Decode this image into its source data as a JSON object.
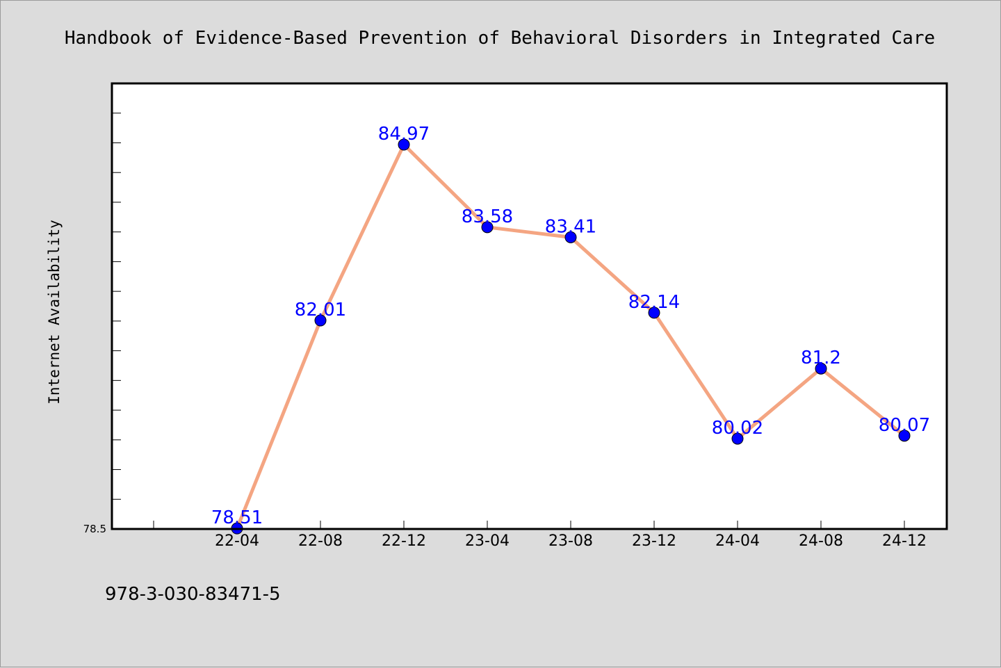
{
  "chart_data": {
    "type": "line",
    "title": "Handbook of Evidence-Based Prevention of Behavioral Disorders in Integrated Care",
    "xlabel": "",
    "ylabel": "Internet Availability",
    "categories": [
      "22-04",
      "22-08",
      "22-12",
      "23-04",
      "23-08",
      "23-12",
      "24-04",
      "24-08",
      "24-12"
    ],
    "series": [
      {
        "values": [
          78.51,
          82.01,
          84.97,
          83.58,
          83.41,
          82.14,
          80.02,
          81.2,
          80.07
        ],
        "labels": [
          "78.51",
          "82.01",
          "84.97",
          "83.58",
          "83.41",
          "82.14",
          "80.02",
          "81.2",
          "80.07"
        ]
      }
    ],
    "ylim": [
      78.5,
      86.0
    ],
    "ytick_labels": [
      "78.5"
    ],
    "grid": false,
    "legend": "none"
  },
  "footnote": "978-3-030-83471-5",
  "colors": {
    "line": "#f4a582",
    "marker": "#0000ff",
    "label": "#0000ff",
    "plot_bg": "#ffffff",
    "figure_bg": "#dcdcdc"
  }
}
